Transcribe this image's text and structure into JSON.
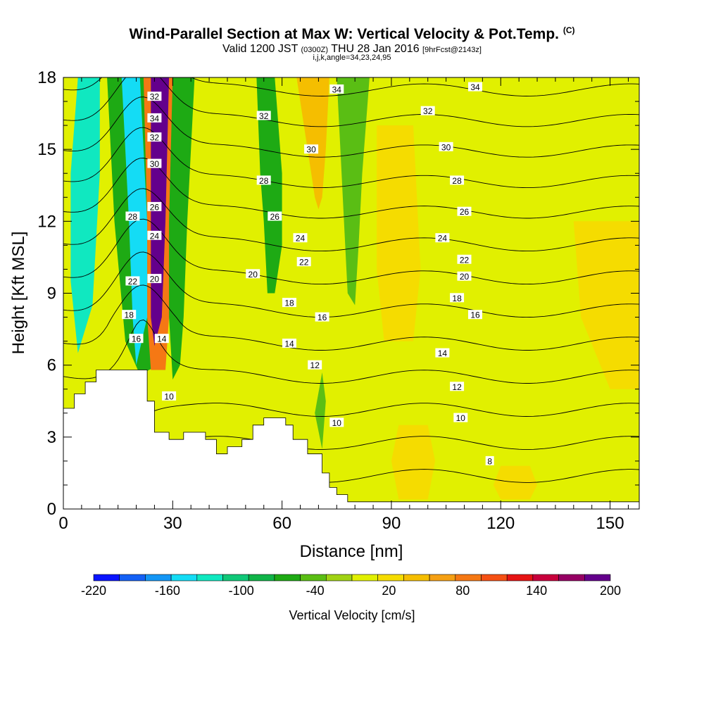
{
  "title": {
    "main": "Wind-Parallel Section at Max W: Vertical Velocity & Pot.Temp.",
    "main_suffix": "(C)",
    "valid_prefix": "Valid 1200 JST",
    "valid_z": "(0300Z)",
    "valid_date": "THU 28 Jan 2016",
    "valid_fcst": "[9hrFcst@2143z]",
    "indices": "i,j,k,angle=34,23,24,95"
  },
  "chart_data": {
    "type": "heatmap",
    "xlabel": "Distance [nm]",
    "ylabel": "Height [Kft MSL]",
    "xlim": [
      0,
      158
    ],
    "ylim": [
      0,
      18
    ],
    "x_ticks": [
      0,
      30,
      60,
      90,
      120,
      150
    ],
    "y_ticks": [
      0,
      3,
      6,
      9,
      12,
      15,
      18
    ],
    "grid": false,
    "colorbar": {
      "label": "Vertical Velocity [cm/s]",
      "range": [
        -220,
        200
      ],
      "tick_labels": [
        -220,
        -160,
        -100,
        -40,
        20,
        80,
        140,
        200
      ],
      "colors": [
        "#0a14ff",
        "#1460f5",
        "#1496f5",
        "#14dcf5",
        "#10e8c0",
        "#10c878",
        "#10b448",
        "#1eaa14",
        "#5abe14",
        "#a0d214",
        "#e1f000",
        "#f5dc00",
        "#f5be00",
        "#f5a014",
        "#f57814",
        "#f55014",
        "#e61414",
        "#c8003c",
        "#960064",
        "#64008c"
      ]
    },
    "series": [
      {
        "name": "Vertical Velocity",
        "bands": [
          {
            "value": -120,
            "polygon": [
              [
                2,
                9.5
              ],
              [
                4,
                6.5
              ],
              [
                8,
                8.5
              ],
              [
                10,
                14
              ],
              [
                10,
                18
              ],
              [
                4,
                18
              ],
              [
                2,
                14
              ]
            ]
          },
          {
            "value": -60,
            "polygon": [
              [
                12,
                18
              ],
              [
                22,
                18
              ],
              [
                26,
                12
              ],
              [
                28,
                8
              ],
              [
                26,
                6
              ],
              [
                21,
                5.6
              ],
              [
                17,
                7
              ],
              [
                14,
                12
              ]
            ]
          },
          {
            "value": -150,
            "polygon": [
              [
                16,
                18
              ],
              [
                21,
                18
              ],
              [
                23,
                12
              ],
              [
                23,
                8
              ],
              [
                20,
                6
              ],
              [
                19,
                8
              ],
              [
                18,
                12
              ]
            ]
          },
          {
            "value": 80,
            "polygon": [
              [
                22,
                18
              ],
              [
                31,
                18
              ],
              [
                30,
                12
              ],
              [
                29,
                8
              ],
              [
                28,
                5.8
              ],
              [
                24,
                5.8
              ],
              [
                23,
                8
              ],
              [
                23,
                12
              ]
            ]
          },
          {
            "value": 180,
            "polygon": [
              [
                24,
                18
              ],
              [
                29,
                18
              ],
              [
                28,
                12
              ],
              [
                27,
                8
              ],
              [
                25,
                6.8
              ],
              [
                24,
                8
              ],
              [
                24,
                12
              ]
            ]
          },
          {
            "value": -60,
            "polygon": [
              [
                30,
                18
              ],
              [
                36,
                18
              ],
              [
                34,
                12
              ],
              [
                33,
                8
              ],
              [
                32,
                6
              ],
              [
                30,
                5.4
              ],
              [
                29,
                8
              ],
              [
                29,
                12
              ]
            ]
          },
          {
            "value": -60,
            "polygon": [
              [
                53,
                18
              ],
              [
                58,
                18
              ],
              [
                60,
                14
              ],
              [
                60,
                11
              ],
              [
                58,
                9
              ],
              [
                56,
                9
              ],
              [
                55,
                12
              ],
              [
                54,
                14
              ]
            ]
          },
          {
            "value": 50,
            "polygon": [
              [
                64,
                18
              ],
              [
                73,
                18
              ],
              [
                72,
                15
              ],
              [
                71,
                13
              ],
              [
                70,
                12.5
              ],
              [
                69,
                13
              ],
              [
                68,
                14
              ],
              [
                66,
                16
              ]
            ]
          },
          {
            "value": -40,
            "polygon": [
              [
                75,
                18
              ],
              [
                84,
                18
              ],
              [
                82,
                14
              ],
              [
                81,
                11
              ],
              [
                80,
                8.5
              ],
              [
                78,
                9
              ],
              [
                77,
                12
              ],
              [
                76,
                15
              ]
            ]
          },
          {
            "value": -40,
            "polygon": [
              [
                69,
                4
              ],
              [
                71,
                5.7
              ],
              [
                72,
                4.5
              ],
              [
                71,
                2.5
              ]
            ]
          },
          {
            "value": 20,
            "polygon": [
              [
                92,
                3.5
              ],
              [
                100,
                3.5
              ],
              [
                102,
                2
              ],
              [
                100,
                0.4
              ],
              [
                92,
                0.4
              ],
              [
                90,
                2
              ]
            ]
          },
          {
            "value": 20,
            "polygon": [
              [
                120,
                1.8
              ],
              [
                128,
                1.8
              ],
              [
                130,
                1
              ],
              [
                128,
                0.4
              ],
              [
                120,
                0.4
              ],
              [
                118,
                1
              ]
            ]
          },
          {
            "value": 20,
            "polygon": [
              [
                140,
                12
              ],
              [
                158,
                12
              ],
              [
                158,
                5
              ],
              [
                150,
                5
              ],
              [
                142,
                8
              ]
            ]
          },
          {
            "value": 20,
            "polygon": [
              [
                86,
                16
              ],
              [
                96,
                16
              ],
              [
                98,
                10
              ],
              [
                96,
                7
              ],
              [
                88,
                7
              ],
              [
                86,
                10
              ]
            ]
          }
        ]
      },
      {
        "name": "Pot.Temp.",
        "contour_levels": [
          8,
          10,
          12,
          14,
          16,
          18,
          20,
          22,
          24,
          26,
          28,
          30,
          32,
          34
        ],
        "contour_labels": [
          {
            "text": "34",
            "x": 75,
            "y": 17.5
          },
          {
            "text": "34",
            "x": 113,
            "y": 17.6
          },
          {
            "text": "32",
            "x": 25,
            "y": 17.2
          },
          {
            "text": "34",
            "x": 25,
            "y": 16.3
          },
          {
            "text": "32",
            "x": 55,
            "y": 16.4
          },
          {
            "text": "32",
            "x": 100,
            "y": 16.6
          },
          {
            "text": "32",
            "x": 25,
            "y": 15.5
          },
          {
            "text": "30",
            "x": 68,
            "y": 15.0
          },
          {
            "text": "30",
            "x": 105,
            "y": 15.1
          },
          {
            "text": "30",
            "x": 25,
            "y": 14.4
          },
          {
            "text": "28",
            "x": 55,
            "y": 13.7
          },
          {
            "text": "28",
            "x": 108,
            "y": 13.7
          },
          {
            "text": "26",
            "x": 25,
            "y": 12.6
          },
          {
            "text": "28",
            "x": 19,
            "y": 12.2
          },
          {
            "text": "26",
            "x": 58,
            "y": 12.2
          },
          {
            "text": "26",
            "x": 110,
            "y": 12.4
          },
          {
            "text": "24",
            "x": 25,
            "y": 11.4
          },
          {
            "text": "24",
            "x": 65,
            "y": 11.3
          },
          {
            "text": "24",
            "x": 104,
            "y": 11.3
          },
          {
            "text": "22",
            "x": 66,
            "y": 10.3
          },
          {
            "text": "22",
            "x": 110,
            "y": 10.4
          },
          {
            "text": "20",
            "x": 52,
            "y": 9.8
          },
          {
            "text": "20",
            "x": 110,
            "y": 9.7
          },
          {
            "text": "22",
            "x": 19,
            "y": 9.5
          },
          {
            "text": "20",
            "x": 25,
            "y": 9.6
          },
          {
            "text": "18",
            "x": 62,
            "y": 8.6
          },
          {
            "text": "18",
            "x": 108,
            "y": 8.8
          },
          {
            "text": "16",
            "x": 71,
            "y": 8.0
          },
          {
            "text": "16",
            "x": 113,
            "y": 8.1
          },
          {
            "text": "18",
            "x": 18,
            "y": 8.1
          },
          {
            "text": "16",
            "x": 20,
            "y": 7.1
          },
          {
            "text": "14",
            "x": 27,
            "y": 7.1
          },
          {
            "text": "14",
            "x": 62,
            "y": 6.9
          },
          {
            "text": "14",
            "x": 104,
            "y": 6.5
          },
          {
            "text": "12",
            "x": 69,
            "y": 6.0
          },
          {
            "text": "12",
            "x": 108,
            "y": 5.1
          },
          {
            "text": "10",
            "x": 29,
            "y": 4.7
          },
          {
            "text": "10",
            "x": 109,
            "y": 3.8
          },
          {
            "text": "10",
            "x": 75,
            "y": 3.6
          },
          {
            "text": "8",
            "x": 117,
            "y": 2.0
          }
        ]
      }
    ],
    "terrain": [
      [
        0,
        4.2
      ],
      [
        3,
        4.2
      ],
      [
        3,
        4.8
      ],
      [
        6,
        4.8
      ],
      [
        6,
        5.3
      ],
      [
        9,
        5.3
      ],
      [
        9,
        5.8
      ],
      [
        23,
        5.8
      ],
      [
        23,
        4.5
      ],
      [
        25,
        4.5
      ],
      [
        25,
        3.2
      ],
      [
        29,
        3.2
      ],
      [
        29,
        2.9
      ],
      [
        33,
        2.9
      ],
      [
        33,
        3.2
      ],
      [
        39,
        3.2
      ],
      [
        39,
        2.9
      ],
      [
        42,
        2.9
      ],
      [
        42,
        2.3
      ],
      [
        45,
        2.3
      ],
      [
        45,
        2.6
      ],
      [
        49,
        2.6
      ],
      [
        49,
        2.9
      ],
      [
        52,
        2.9
      ],
      [
        52,
        3.5
      ],
      [
        55,
        3.5
      ],
      [
        55,
        3.8
      ],
      [
        61,
        3.8
      ],
      [
        61,
        3.5
      ],
      [
        63,
        3.5
      ],
      [
        63,
        2.9
      ],
      [
        67,
        2.9
      ],
      [
        67,
        2.3
      ],
      [
        71,
        2.3
      ],
      [
        71,
        1.5
      ],
      [
        73,
        1.5
      ],
      [
        73,
        0.9
      ],
      [
        75,
        0.9
      ],
      [
        75,
        0.6
      ],
      [
        78,
        0.6
      ],
      [
        78,
        0.3
      ],
      [
        158,
        0.3
      ],
      [
        158,
        0
      ],
      [
        0,
        0
      ]
    ]
  }
}
